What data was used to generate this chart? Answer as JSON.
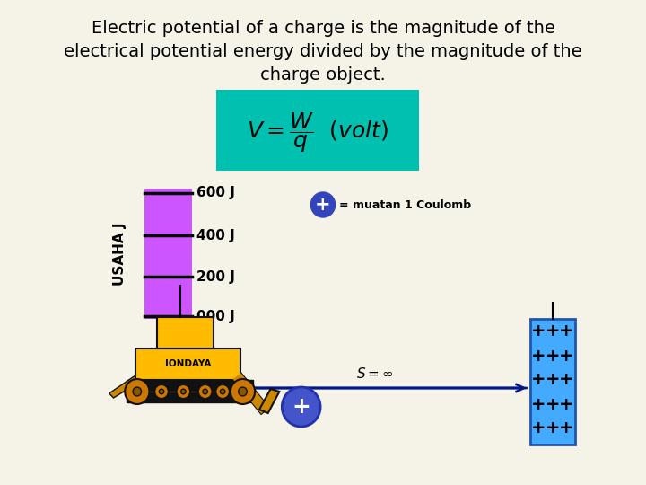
{
  "background_color": "#f5f2e8",
  "title_line1": "Electric potential of a charge is the magnitude of the",
  "title_line2": "electrical potential energy divided by the magnitude of the",
  "title_line3": "charge object.",
  "formula_bg": "#00c0b0",
  "bar_color": "#cc55ff",
  "usaha_label": "USAHA J",
  "tick_labels": [
    "600 J",
    "400 J",
    "200 J",
    "000 J"
  ],
  "coulomb_label": "= muatan 1 Coulomb",
  "coulomb_circle_color": "#3344bb",
  "charge_plate_color": "#44aaff",
  "arrow_color": "#001888",
  "bulldozer_body_color": "#ffbb00",
  "bulldozer_dark": "#cc8800",
  "bulldozer_track_color": "#222222",
  "wheel_color": "#cc7700",
  "iondaya_label": "IONDAYA",
  "title_fontsize": 14,
  "tick_fontsize": 11
}
